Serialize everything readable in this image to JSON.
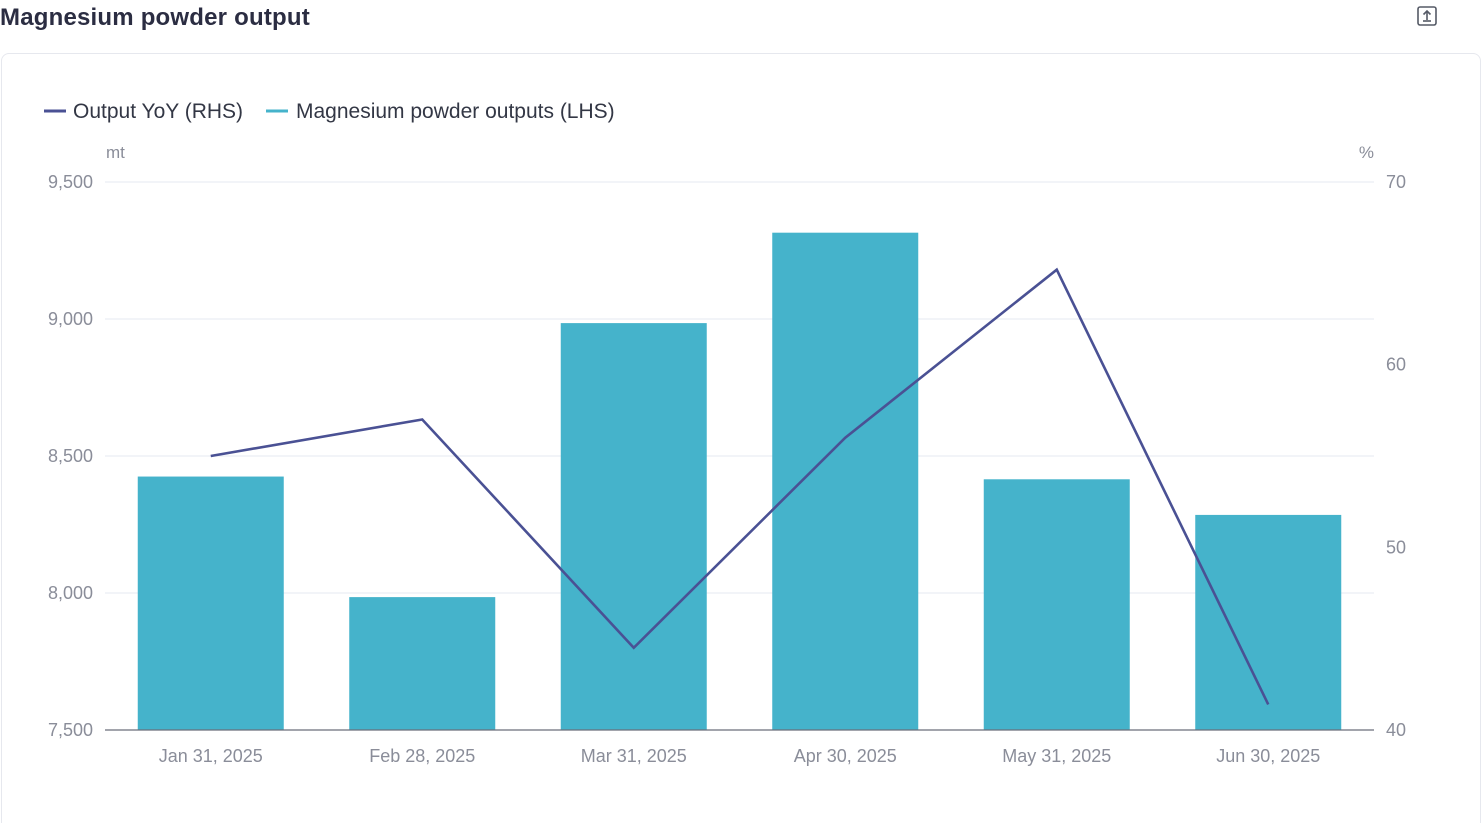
{
  "header": {
    "title": "Magnesium powder output",
    "export_icon": "export-icon"
  },
  "colors": {
    "bar": "#45b3cb",
    "line": "#4a5194",
    "grid": "#e6e8f2",
    "axis_text": "#8a8d99",
    "baseline": "#6b6e7a"
  },
  "chart_data": {
    "type": "bar",
    "title": "Magnesium powder output",
    "categories": [
      "Jan 31, 2025",
      "Feb 28, 2025",
      "Mar 31, 2025",
      "Apr 30, 2025",
      "May 31, 2025",
      "Jun 30, 2025"
    ],
    "series": [
      {
        "name": "Output YoY (RHS)",
        "type": "line",
        "axis": "right",
        "values": [
          55.0,
          57.0,
          44.5,
          56.0,
          65.2,
          41.4
        ]
      },
      {
        "name": "Magnesium powder outputs (LHS)",
        "type": "bar",
        "axis": "left",
        "values": [
          8425,
          7985,
          8985,
          9315,
          8415,
          8285
        ]
      }
    ],
    "left_axis": {
      "unit": "mt",
      "ylim": [
        7500,
        9500
      ],
      "ticks": [
        7500,
        8000,
        8500,
        9000,
        9500
      ],
      "tick_labels": [
        "7,500",
        "8,000",
        "8,500",
        "9,000",
        "9,500"
      ]
    },
    "right_axis": {
      "unit": "%",
      "ylim": [
        40,
        70
      ],
      "ticks": [
        40,
        50,
        60,
        70
      ],
      "tick_labels": [
        "40",
        "50",
        "60",
        "70"
      ]
    },
    "grid": true,
    "legend_position": "top-left"
  }
}
